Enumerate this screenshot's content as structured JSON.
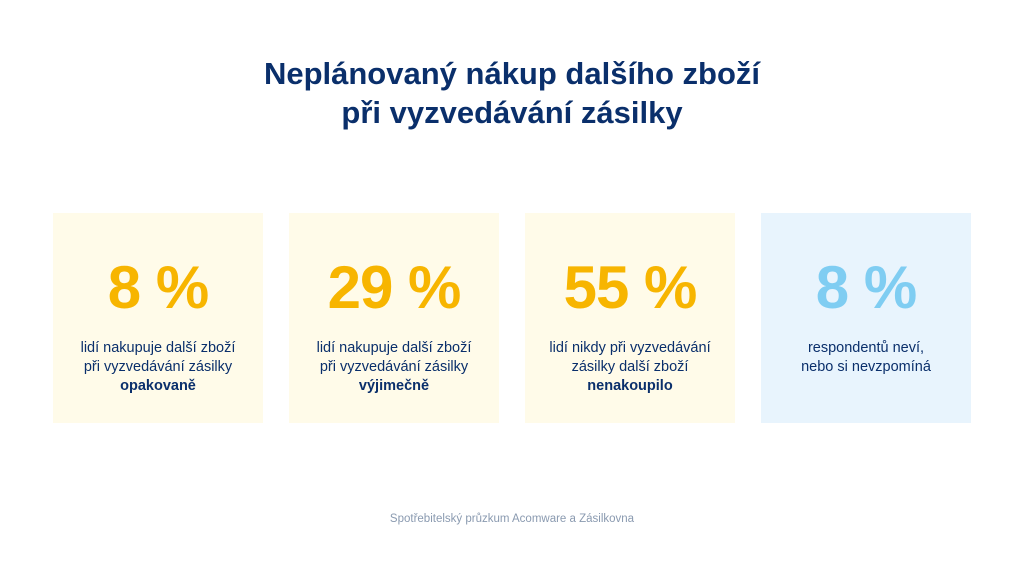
{
  "title": {
    "line1": "Neplánovaný nákup dalšího zboží",
    "line2": "při vyzvedávání zásilky"
  },
  "colors": {
    "title": "#0a2f6b",
    "accent_yellow": "#f7b500",
    "accent_blue": "#7fcdf2",
    "card_yellow_bg": "#fffbe9",
    "card_blue_bg": "#e8f4fd",
    "footer": "#8a9ab0"
  },
  "chart_data": {
    "type": "table",
    "title": "Neplánovaný nákup dalšího zboží při vyzvedávání zásilky",
    "unit": "%",
    "items": [
      {
        "value": 8,
        "display": "8 %",
        "line1": "lidí nakupuje další zboží",
        "line2": "při vyzvedávání zásilky",
        "emphasis": "opakovaně",
        "accent": "#f7b500",
        "background": "#fffbe9"
      },
      {
        "value": 29,
        "display": "29 %",
        "line1": "lidí nakupuje další zboží",
        "line2": "při vyzvedávání zásilky",
        "emphasis": "výjimečně",
        "accent": "#f7b500",
        "background": "#fffbe9"
      },
      {
        "value": 55,
        "display": "55 %",
        "line1": "lidí nikdy při vyzvedávání",
        "line2": "zásilky další zboží",
        "emphasis": "nenakoupilo",
        "accent": "#f7b500",
        "background": "#fffbe9"
      },
      {
        "value": 8,
        "display": "8 %",
        "line1": "respondentů neví,",
        "line2": "nebo si nevzpomíná",
        "emphasis": "",
        "accent": "#7fcdf2",
        "background": "#e8f4fd"
      }
    ]
  },
  "footer": {
    "source": "Spotřebitelský průzkum Acomware a Zásilkovna"
  }
}
